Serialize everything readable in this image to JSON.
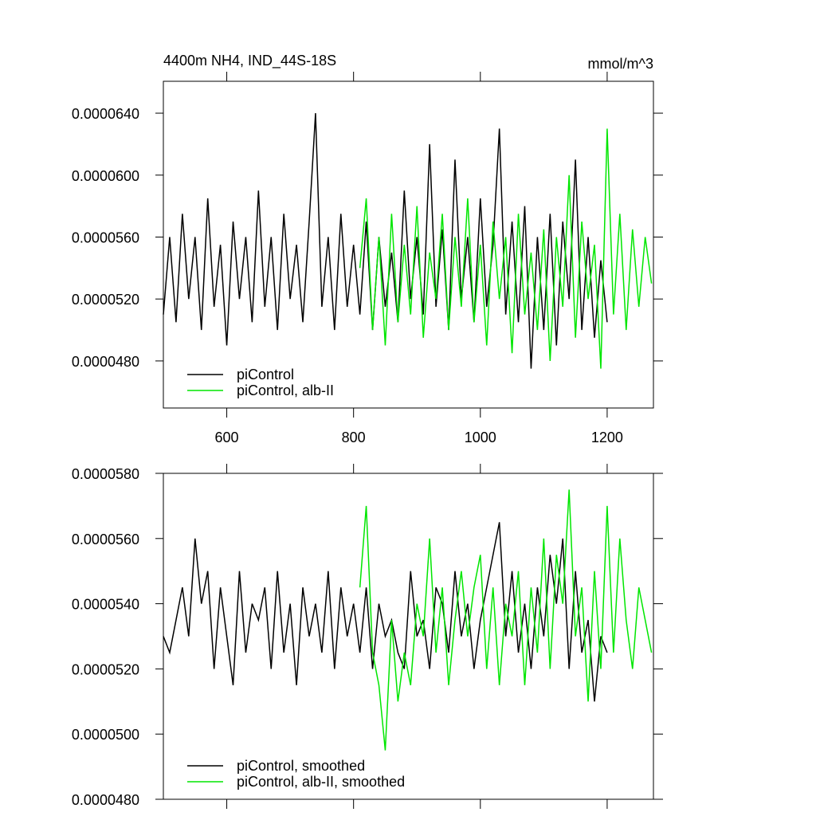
{
  "chart_data": [
    {
      "type": "line",
      "title": "4400m NH4, IND_44S-18S",
      "units": "mmol/m^3",
      "xlim": [
        500,
        1273
      ],
      "ylim": [
        4.496e-05,
        6.606e-05
      ],
      "xticks": [
        600,
        800,
        1000,
        1200
      ],
      "yticks": [
        {
          "value": 4.8e-05,
          "label": "0.0000480"
        },
        {
          "value": 5.2e-05,
          "label": "0.0000520"
        },
        {
          "value": 5.6e-05,
          "label": "0.0000560"
        },
        {
          "value": 6e-05,
          "label": "0.0000600"
        },
        {
          "value": 6.4e-05,
          "label": "0.0000640"
        }
      ],
      "legend": "lower left",
      "series": [
        {
          "name": "piControl",
          "color": "#000000",
          "x": [
            500,
            510,
            520,
            530,
            540,
            550,
            560,
            570,
            580,
            590,
            600,
            610,
            620,
            630,
            640,
            650,
            660,
            670,
            680,
            690,
            700,
            710,
            720,
            730,
            740,
            750,
            760,
            770,
            780,
            790,
            800,
            810,
            820,
            830,
            840,
            850,
            860,
            870,
            880,
            890,
            900,
            910,
            920,
            930,
            940,
            950,
            960,
            970,
            980,
            990,
            1000,
            1010,
            1020,
            1030,
            1040,
            1050,
            1060,
            1070,
            1080,
            1090,
            1100,
            1110,
            1120,
            1130,
            1140,
            1150,
            1160,
            1170,
            1180,
            1190,
            1200
          ],
          "values": [
            5.1e-05,
            5.6e-05,
            5.05e-05,
            5.75e-05,
            5.2e-05,
            5.6e-05,
            5e-05,
            5.85e-05,
            5.15e-05,
            5.55e-05,
            4.9e-05,
            5.7e-05,
            5.2e-05,
            5.6e-05,
            5.05e-05,
            5.9e-05,
            5.15e-05,
            5.6e-05,
            5e-05,
            5.75e-05,
            5.2e-05,
            5.55e-05,
            5.05e-05,
            5.7e-05,
            6.4e-05,
            5.15e-05,
            5.6e-05,
            5e-05,
            5.75e-05,
            5.15e-05,
            5.55e-05,
            5.1e-05,
            5.7e-05,
            5e-05,
            5.6e-05,
            5.15e-05,
            5.5e-05,
            5.05e-05,
            5.9e-05,
            5.2e-05,
            5.6e-05,
            5.1e-05,
            6.2e-05,
            5.15e-05,
            5.65e-05,
            5e-05,
            6.1e-05,
            5.2e-05,
            5.6e-05,
            5.05e-05,
            5.85e-05,
            5.15e-05,
            5.55e-05,
            6.3e-05,
            5.1e-05,
            5.7e-05,
            5.05e-05,
            5.8e-05,
            4.75e-05,
            5.6e-05,
            5e-05,
            5.75e-05,
            4.9e-05,
            5.7e-05,
            5.2e-05,
            6.1e-05,
            5e-05,
            5.6e-05,
            4.95e-05,
            5.45e-05,
            5.05e-05
          ]
        },
        {
          "name": "piControl, alb-II",
          "color": "#00e600",
          "x": [
            810,
            820,
            830,
            840,
            850,
            860,
            870,
            880,
            890,
            900,
            910,
            920,
            930,
            940,
            950,
            960,
            970,
            980,
            990,
            1000,
            1010,
            1020,
            1030,
            1040,
            1050,
            1060,
            1070,
            1080,
            1090,
            1100,
            1110,
            1120,
            1130,
            1140,
            1150,
            1160,
            1170,
            1180,
            1190,
            1200,
            1210,
            1220,
            1230,
            1240,
            1250,
            1260,
            1270
          ],
          "values": [
            5.4e-05,
            5.85e-05,
            5e-05,
            5.6e-05,
            4.9e-05,
            5.75e-05,
            5.05e-05,
            5.55e-05,
            5.1e-05,
            5.8e-05,
            4.95e-05,
            5.5e-05,
            5.2e-05,
            5.75e-05,
            5e-05,
            5.6e-05,
            5.15e-05,
            5.85e-05,
            5.05e-05,
            5.55e-05,
            4.9e-05,
            5.7e-05,
            5.2e-05,
            5.6e-05,
            4.85e-05,
            5.75e-05,
            5.1e-05,
            5.5e-05,
            5e-05,
            5.65e-05,
            4.8e-05,
            5.6e-05,
            5.15e-05,
            6e-05,
            4.95e-05,
            5.7e-05,
            5.2e-05,
            5.55e-05,
            4.75e-05,
            6.3e-05,
            5.1e-05,
            5.75e-05,
            5e-05,
            5.65e-05,
            5.15e-05,
            5.6e-05,
            5.3e-05
          ]
        }
      ]
    },
    {
      "type": "line",
      "xlim": [
        500,
        1273
      ],
      "ylim": [
        4.8e-05,
        5.8e-05
      ],
      "xticks": [
        600,
        800,
        1000,
        1200
      ],
      "yticks": [
        {
          "value": 4.8e-05,
          "label": "0.0000480"
        },
        {
          "value": 5e-05,
          "label": "0.0000500"
        },
        {
          "value": 5.2e-05,
          "label": "0.0000520"
        },
        {
          "value": 5.4e-05,
          "label": "0.0000540"
        },
        {
          "value": 5.6e-05,
          "label": "0.0000560"
        },
        {
          "value": 5.8e-05,
          "label": "0.0000580"
        }
      ],
      "legend": "lower left",
      "series": [
        {
          "name": "piControl, smoothed",
          "color": "#000000",
          "x": [
            500,
            510,
            520,
            530,
            540,
            550,
            560,
            570,
            580,
            590,
            600,
            610,
            620,
            630,
            640,
            650,
            660,
            670,
            680,
            690,
            700,
            710,
            720,
            730,
            740,
            750,
            760,
            770,
            780,
            790,
            800,
            810,
            820,
            830,
            840,
            850,
            860,
            870,
            880,
            890,
            900,
            910,
            920,
            930,
            940,
            950,
            960,
            970,
            980,
            990,
            1000,
            1010,
            1020,
            1030,
            1040,
            1050,
            1060,
            1070,
            1080,
            1090,
            1100,
            1110,
            1120,
            1130,
            1140,
            1150,
            1160,
            1170,
            1180,
            1190,
            1200
          ],
          "values": [
            5.3e-05,
            5.25e-05,
            5.35e-05,
            5.45e-05,
            5.3e-05,
            5.6e-05,
            5.4e-05,
            5.5e-05,
            5.2e-05,
            5.45e-05,
            5.3e-05,
            5.15e-05,
            5.5e-05,
            5.25e-05,
            5.4e-05,
            5.35e-05,
            5.45e-05,
            5.2e-05,
            5.5e-05,
            5.25e-05,
            5.4e-05,
            5.15e-05,
            5.45e-05,
            5.3e-05,
            5.4e-05,
            5.25e-05,
            5.5e-05,
            5.2e-05,
            5.45e-05,
            5.3e-05,
            5.4e-05,
            5.25e-05,
            5.45e-05,
            5.2e-05,
            5.4e-05,
            5.3e-05,
            5.35e-05,
            5.25e-05,
            5.2e-05,
            5.5e-05,
            5.3e-05,
            5.35e-05,
            5.2e-05,
            5.45e-05,
            5.4e-05,
            5.25e-05,
            5.5e-05,
            5.3e-05,
            5.4e-05,
            5.2e-05,
            5.35e-05,
            5.45e-05,
            5.55e-05,
            5.65e-05,
            5.3e-05,
            5.5e-05,
            5.25e-05,
            5.4e-05,
            5.2e-05,
            5.45e-05,
            5.3e-05,
            5.55e-05,
            5.4e-05,
            5.6e-05,
            5.2e-05,
            5.5e-05,
            5.25e-05,
            5.35e-05,
            5.1e-05,
            5.3e-05,
            5.25e-05
          ]
        },
        {
          "name": "piControl, alb-II, smoothed",
          "color": "#00e600",
          "x": [
            810,
            820,
            830,
            840,
            850,
            860,
            870,
            880,
            890,
            900,
            910,
            920,
            930,
            940,
            950,
            960,
            970,
            980,
            990,
            1000,
            1010,
            1020,
            1030,
            1040,
            1050,
            1060,
            1070,
            1080,
            1090,
            1100,
            1110,
            1120,
            1130,
            1140,
            1150,
            1160,
            1170,
            1180,
            1190,
            1200,
            1210,
            1220,
            1230,
            1240,
            1250,
            1260,
            1270
          ],
          "values": [
            5.45e-05,
            5.7e-05,
            5.25e-05,
            5.15e-05,
            4.95e-05,
            5.35e-05,
            5.1e-05,
            5.25e-05,
            5.15e-05,
            5.4e-05,
            5.3e-05,
            5.6e-05,
            5.25e-05,
            5.45e-05,
            5.15e-05,
            5.35e-05,
            5.5e-05,
            5.3e-05,
            5.45e-05,
            5.55e-05,
            5.2e-05,
            5.45e-05,
            5.15e-05,
            5.4e-05,
            5.3e-05,
            5.5e-05,
            5.15e-05,
            5.45e-05,
            5.25e-05,
            5.6e-05,
            5.2e-05,
            5.55e-05,
            5.4e-05,
            5.75e-05,
            5.3e-05,
            5.45e-05,
            5.1e-05,
            5.5e-05,
            5.2e-05,
            5.7e-05,
            5.25e-05,
            5.6e-05,
            5.35e-05,
            5.2e-05,
            5.45e-05,
            5.35e-05,
            5.25e-05
          ]
        }
      ]
    }
  ]
}
